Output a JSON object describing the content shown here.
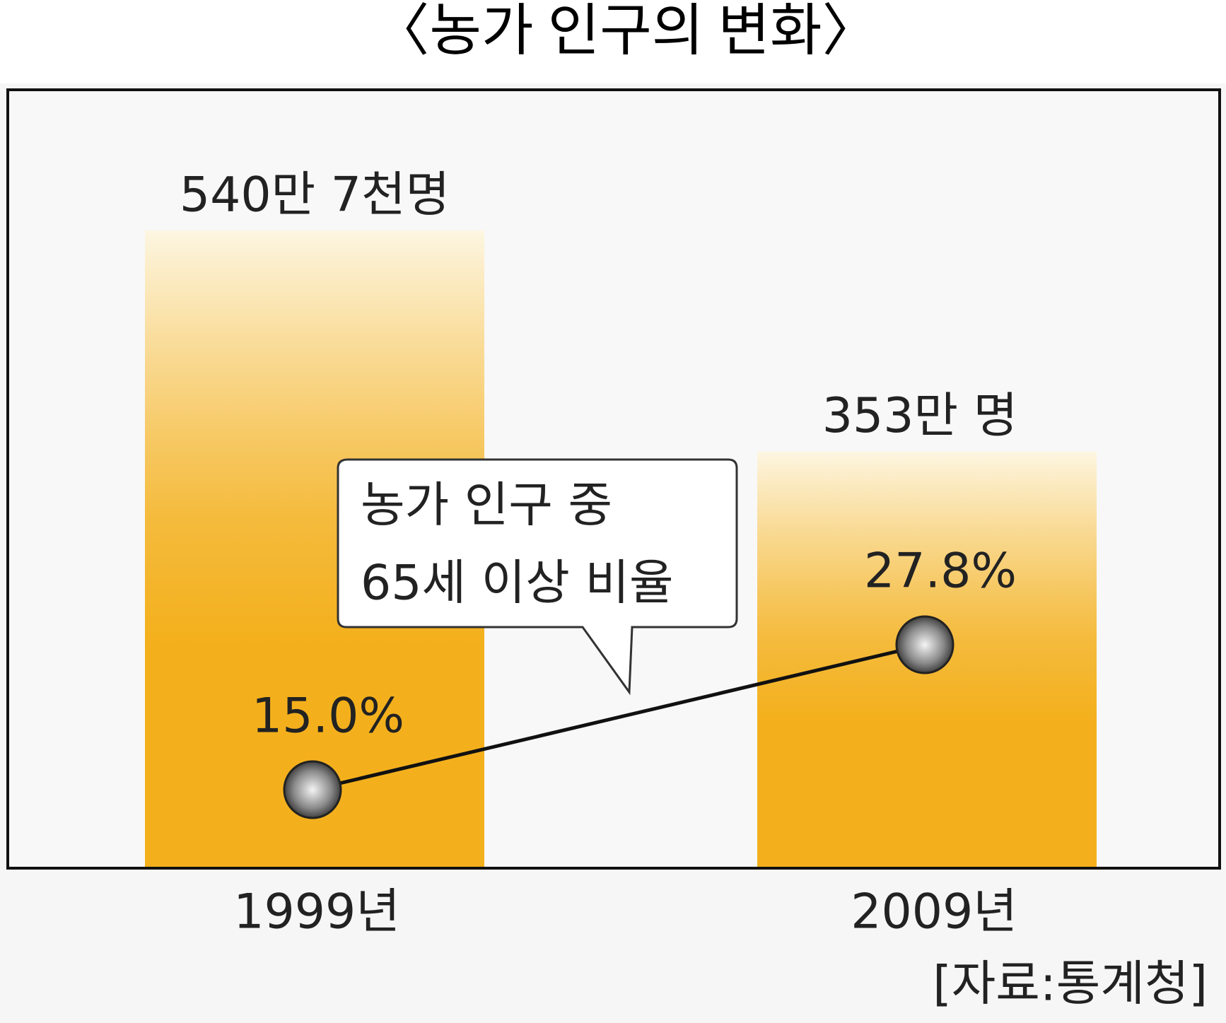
{
  "chart_data": {
    "type": "bar",
    "title": "〈농가 인구의 변화〉",
    "categories": [
      "1999년",
      "2009년"
    ],
    "series": [
      {
        "type": "bar",
        "color": "#f4b01c",
        "values": [
          540.7,
          353
        ],
        "value_labels": [
          "540만 7천명",
          "353만 명"
        ]
      },
      {
        "type": "line",
        "color": "#111111",
        "values": [
          15.0,
          27.8
        ],
        "value_labels": [
          "15.0%",
          "27.8%"
        ]
      }
    ],
    "annotation": [
      "농가 인구 중",
      "65세 이상 비율"
    ],
    "source": "[자료:통계청]"
  }
}
